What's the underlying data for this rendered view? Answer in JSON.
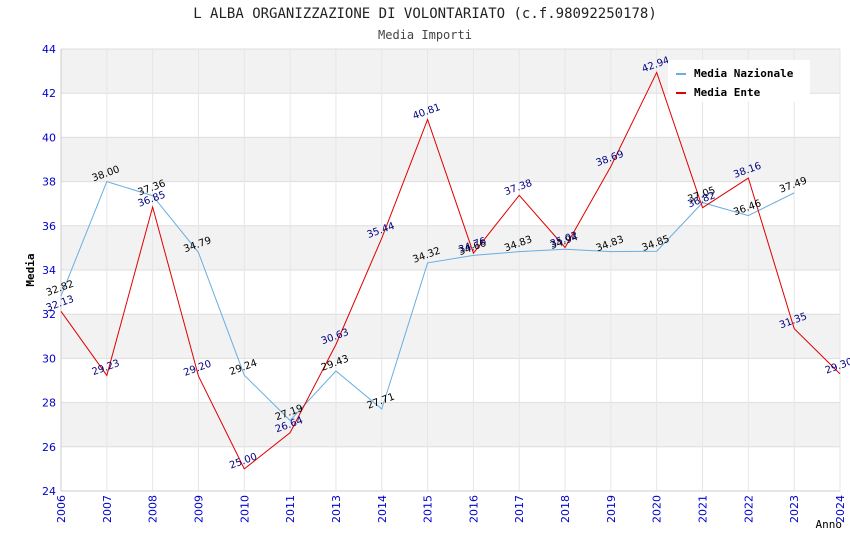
{
  "chart_data": {
    "type": "line",
    "title": "L ALBA ORGANIZZAZIONE DI VOLONTARIATO (c.f.98092250178)",
    "subtitle": "Media Importi",
    "xlabel": "Anno",
    "ylabel": "Media",
    "ylim": [
      24,
      44
    ],
    "yticks": [
      24,
      26,
      28,
      30,
      32,
      34,
      36,
      38,
      40,
      42,
      44
    ],
    "categories": [
      "2006",
      "2007",
      "2008",
      "2009",
      "2010",
      "2011",
      "2013",
      "2014",
      "2015",
      "2016",
      "2017",
      "2018",
      "2019",
      "2020",
      "2021",
      "2022",
      "2023",
      "2024"
    ],
    "grid": true,
    "legend_position": "top-right",
    "series": [
      {
        "name": "Media Nazionale",
        "color": "#6aaee0",
        "label_color": "#000000",
        "values": [
          32.82,
          38.0,
          37.36,
          34.79,
          29.24,
          27.19,
          29.43,
          27.71,
          34.32,
          34.66,
          34.83,
          34.94,
          34.83,
          34.85,
          37.05,
          36.46,
          37.49,
          null
        ]
      },
      {
        "name": "Media Ente",
        "color": "#e00000",
        "label_color": "#000080",
        "values": [
          32.13,
          29.23,
          36.85,
          29.2,
          25.0,
          26.64,
          30.63,
          35.44,
          40.81,
          34.76,
          37.38,
          35.02,
          38.69,
          42.94,
          36.82,
          38.16,
          31.35,
          29.3
        ]
      }
    ]
  }
}
